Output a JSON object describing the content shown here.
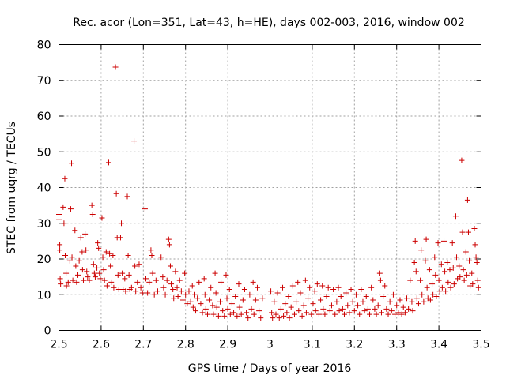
{
  "chart_data": {
    "type": "scatter",
    "title": "Rec. acor (Lon=351, Lat=43, h=HE), days 002-003, 2016, window 002",
    "xlabel": "GPS time / Days of year 2016",
    "ylabel": "STEC from uqrg / TECUs",
    "xlim": [
      2.5,
      3.5
    ],
    "ylim": [
      0,
      80
    ],
    "xticks": [
      2.5,
      2.6,
      2.7,
      2.8,
      2.9,
      3.0,
      3.1,
      3.2,
      3.3,
      3.4,
      3.5
    ],
    "xtick_labels": [
      "2.5",
      "2.6",
      "2.7",
      "2.8",
      "2.9",
      "3",
      "3.1",
      "3.2",
      "3.3",
      "3.4",
      "3.5"
    ],
    "yticks": [
      0,
      10,
      20,
      30,
      40,
      50,
      60,
      70,
      80
    ],
    "ytick_labels": [
      "0",
      "10",
      "20",
      "30",
      "40",
      "50",
      "60",
      "70",
      "80"
    ],
    "grid": true,
    "marker": "+",
    "color": "#cc0000",
    "series": [
      {
        "name": "STEC",
        "points": [
          [
            2.5,
            32.5
          ],
          [
            2.5,
            31.0
          ],
          [
            2.502,
            24.0
          ],
          [
            2.502,
            22.5
          ],
          [
            2.503,
            14.5
          ],
          [
            2.504,
            13.0
          ],
          [
            2.51,
            34.5
          ],
          [
            2.512,
            30.0
          ],
          [
            2.514,
            42.5
          ],
          [
            2.515,
            21.0
          ],
          [
            2.517,
            16.0
          ],
          [
            2.518,
            12.5
          ],
          [
            2.522,
            13.5
          ],
          [
            2.526,
            19.5
          ],
          [
            2.528,
            34.0
          ],
          [
            2.53,
            46.8
          ],
          [
            2.531,
            20.5
          ],
          [
            2.533,
            14.0
          ],
          [
            2.538,
            28.0
          ],
          [
            2.54,
            18.0
          ],
          [
            2.542,
            13.5
          ],
          [
            2.545,
            15.5
          ],
          [
            2.548,
            19.5
          ],
          [
            2.552,
            26.0
          ],
          [
            2.555,
            22.0
          ],
          [
            2.556,
            17.0
          ],
          [
            2.558,
            14.0
          ],
          [
            2.562,
            27.0
          ],
          [
            2.564,
            22.5
          ],
          [
            2.566,
            16.5
          ],
          [
            2.568,
            15.0
          ],
          [
            2.572,
            14.0
          ],
          [
            2.578,
            35.0
          ],
          [
            2.58,
            32.5
          ],
          [
            2.582,
            18.5
          ],
          [
            2.584,
            16.0
          ],
          [
            2.586,
            15.0
          ],
          [
            2.59,
            17.5
          ],
          [
            2.592,
            24.5
          ],
          [
            2.594,
            23.0
          ],
          [
            2.596,
            16.0
          ],
          [
            2.598,
            14.5
          ],
          [
            2.602,
            31.5
          ],
          [
            2.604,
            20.5
          ],
          [
            2.606,
            17.0
          ],
          [
            2.608,
            14.0
          ],
          [
            2.612,
            22.0
          ],
          [
            2.614,
            12.5
          ],
          [
            2.618,
            47.0
          ],
          [
            2.62,
            21.5
          ],
          [
            2.622,
            18.0
          ],
          [
            2.624,
            13.5
          ],
          [
            2.628,
            21.0
          ],
          [
            2.63,
            12.0
          ],
          [
            2.634,
            73.7
          ],
          [
            2.636,
            38.3
          ],
          [
            2.638,
            26.0
          ],
          [
            2.64,
            15.5
          ],
          [
            2.642,
            11.5
          ],
          [
            2.646,
            26.0
          ],
          [
            2.648,
            30.0
          ],
          [
            2.65,
            16.0
          ],
          [
            2.652,
            11.5
          ],
          [
            2.656,
            14.5
          ],
          [
            2.658,
            11.0
          ],
          [
            2.662,
            37.5
          ],
          [
            2.664,
            21.0
          ],
          [
            2.666,
            15.5
          ],
          [
            2.668,
            11.5
          ],
          [
            2.672,
            12.0
          ],
          [
            2.678,
            53.0
          ],
          [
            2.68,
            18.0
          ],
          [
            2.682,
            11.0
          ],
          [
            2.686,
            13.5
          ],
          [
            2.69,
            18.5
          ],
          [
            2.694,
            12.0
          ],
          [
            2.698,
            10.5
          ],
          [
            2.704,
            34.0
          ],
          [
            2.706,
            14.5
          ],
          [
            2.71,
            10.5
          ],
          [
            2.714,
            13.5
          ],
          [
            2.718,
            22.5
          ],
          [
            2.72,
            21.0
          ],
          [
            2.722,
            16.0
          ],
          [
            2.726,
            10.0
          ],
          [
            2.73,
            14.0
          ],
          [
            2.734,
            11.0
          ],
          [
            2.742,
            20.5
          ],
          [
            2.746,
            15.0
          ],
          [
            2.748,
            12.0
          ],
          [
            2.752,
            10.0
          ],
          [
            2.756,
            14.0
          ],
          [
            2.76,
            25.5
          ],
          [
            2.762,
            24.0
          ],
          [
            2.764,
            18.0
          ],
          [
            2.766,
            13.0
          ],
          [
            2.77,
            11.5
          ],
          [
            2.772,
            9.0
          ],
          [
            2.776,
            16.5
          ],
          [
            2.78,
            12.0
          ],
          [
            2.782,
            9.5
          ],
          [
            2.786,
            14.0
          ],
          [
            2.79,
            11.0
          ],
          [
            2.794,
            8.5
          ],
          [
            2.798,
            16.0
          ],
          [
            2.8,
            10.0
          ],
          [
            2.804,
            7.5
          ],
          [
            2.808,
            11.0
          ],
          [
            2.812,
            8.0
          ],
          [
            2.816,
            12.5
          ],
          [
            2.818,
            6.5
          ],
          [
            2.822,
            10.0
          ],
          [
            2.824,
            5.5
          ],
          [
            2.828,
            9.0
          ],
          [
            2.832,
            13.5
          ],
          [
            2.836,
            7.5
          ],
          [
            2.84,
            5.0
          ],
          [
            2.844,
            14.5
          ],
          [
            2.846,
            10.0
          ],
          [
            2.848,
            6.0
          ],
          [
            2.852,
            4.5
          ],
          [
            2.856,
            8.5
          ],
          [
            2.86,
            12.0
          ],
          [
            2.864,
            7.0
          ],
          [
            2.866,
            4.5
          ],
          [
            2.87,
            16.0
          ],
          [
            2.872,
            10.5
          ],
          [
            2.874,
            6.5
          ],
          [
            2.878,
            4.0
          ],
          [
            2.882,
            8.0
          ],
          [
            2.884,
            13.5
          ],
          [
            2.888,
            5.5
          ],
          [
            2.892,
            4.0
          ],
          [
            2.896,
            15.5
          ],
          [
            2.898,
            9.0
          ],
          [
            2.9,
            6.0
          ],
          [
            2.904,
            11.5
          ],
          [
            2.906,
            4.5
          ],
          [
            2.91,
            7.5
          ],
          [
            2.914,
            5.0
          ],
          [
            2.918,
            9.5
          ],
          [
            2.922,
            4.0
          ],
          [
            2.926,
            13.0
          ],
          [
            2.928,
            6.5
          ],
          [
            2.932,
            4.5
          ],
          [
            2.936,
            8.5
          ],
          [
            2.94,
            11.5
          ],
          [
            2.944,
            5.0
          ],
          [
            2.948,
            3.5
          ],
          [
            2.952,
            10.0
          ],
          [
            2.956,
            6.0
          ],
          [
            2.96,
            13.5
          ],
          [
            2.962,
            4.5
          ],
          [
            2.966,
            8.5
          ],
          [
            2.97,
            12.0
          ],
          [
            2.974,
            5.5
          ],
          [
            2.978,
            3.5
          ],
          [
            2.982,
            9.0
          ],
          [
            3.002,
            11.0
          ],
          [
            3.004,
            5.0
          ],
          [
            3.006,
            3.5
          ],
          [
            3.01,
            8.0
          ],
          [
            3.014,
            4.5
          ],
          [
            3.018,
            10.5
          ],
          [
            3.022,
            3.5
          ],
          [
            3.026,
            6.0
          ],
          [
            3.03,
            12.0
          ],
          [
            3.032,
            4.0
          ],
          [
            3.036,
            7.5
          ],
          [
            3.04,
            5.0
          ],
          [
            3.044,
            9.5
          ],
          [
            3.046,
            3.5
          ],
          [
            3.05,
            6.5
          ],
          [
            3.054,
            12.5
          ],
          [
            3.058,
            4.5
          ],
          [
            3.062,
            8.0
          ],
          [
            3.066,
            13.5
          ],
          [
            3.068,
            5.5
          ],
          [
            3.072,
            10.5
          ],
          [
            3.076,
            4.0
          ],
          [
            3.08,
            7.0
          ],
          [
            3.084,
            14.0
          ],
          [
            3.086,
            5.0
          ],
          [
            3.09,
            9.0
          ],
          [
            3.094,
            12.0
          ],
          [
            3.098,
            4.5
          ],
          [
            3.102,
            7.5
          ],
          [
            3.106,
            11.0
          ],
          [
            3.108,
            5.5
          ],
          [
            3.112,
            13.0
          ],
          [
            3.116,
            4.5
          ],
          [
            3.12,
            8.5
          ],
          [
            3.124,
            12.5
          ],
          [
            3.126,
            6.0
          ],
          [
            3.13,
            4.5
          ],
          [
            3.134,
            9.5
          ],
          [
            3.138,
            12.0
          ],
          [
            3.142,
            5.5
          ],
          [
            3.146,
            7.0
          ],
          [
            3.15,
            11.5
          ],
          [
            3.154,
            4.5
          ],
          [
            3.158,
            8.0
          ],
          [
            3.162,
            12.0
          ],
          [
            3.164,
            5.5
          ],
          [
            3.168,
            9.5
          ],
          [
            3.172,
            6.0
          ],
          [
            3.176,
            4.5
          ],
          [
            3.18,
            10.5
          ],
          [
            3.184,
            7.0
          ],
          [
            3.188,
            5.0
          ],
          [
            3.192,
            11.5
          ],
          [
            3.196,
            8.0
          ],
          [
            3.2,
            5.5
          ],
          [
            3.204,
            10.0
          ],
          [
            3.208,
            7.0
          ],
          [
            3.212,
            4.5
          ],
          [
            3.216,
            11.5
          ],
          [
            3.22,
            8.0
          ],
          [
            3.224,
            5.5
          ],
          [
            3.228,
            9.5
          ],
          [
            3.232,
            6.0
          ],
          [
            3.236,
            4.5
          ],
          [
            3.24,
            12.0
          ],
          [
            3.244,
            8.5
          ],
          [
            3.248,
            6.0
          ],
          [
            3.252,
            4.5
          ],
          [
            3.256,
            7.0
          ],
          [
            3.26,
            16.0
          ],
          [
            3.262,
            14.0
          ],
          [
            3.264,
            5.0
          ],
          [
            3.268,
            9.5
          ],
          [
            3.272,
            12.5
          ],
          [
            3.276,
            6.0
          ],
          [
            3.28,
            4.5
          ],
          [
            3.284,
            8.0
          ],
          [
            3.288,
            5.5
          ],
          [
            3.292,
            10.0
          ],
          [
            3.296,
            4.5
          ],
          [
            3.3,
            7.0
          ],
          [
            3.304,
            5.0
          ],
          [
            3.308,
            8.5
          ],
          [
            3.312,
            4.5
          ],
          [
            3.316,
            6.5
          ],
          [
            3.32,
            5.0
          ],
          [
            3.324,
            9.0
          ],
          [
            3.328,
            6.0
          ],
          [
            3.332,
            14.0
          ],
          [
            3.336,
            8.0
          ],
          [
            3.338,
            5.5
          ],
          [
            3.342,
            19.0
          ],
          [
            3.344,
            25.0
          ],
          [
            3.346,
            16.5
          ],
          [
            3.348,
            9.0
          ],
          [
            3.352,
            7.5
          ],
          [
            3.356,
            14.0
          ],
          [
            3.358,
            22.5
          ],
          [
            3.36,
            10.0
          ],
          [
            3.364,
            8.0
          ],
          [
            3.368,
            19.5
          ],
          [
            3.37,
            25.5
          ],
          [
            3.372,
            12.0
          ],
          [
            3.374,
            9.0
          ],
          [
            3.378,
            17.0
          ],
          [
            3.38,
            8.5
          ],
          [
            3.384,
            13.0
          ],
          [
            3.386,
            10.0
          ],
          [
            3.39,
            20.5
          ],
          [
            3.392,
            15.5
          ],
          [
            3.394,
            9.5
          ],
          [
            3.398,
            24.5
          ],
          [
            3.4,
            14.0
          ],
          [
            3.402,
            11.0
          ],
          [
            3.406,
            18.5
          ],
          [
            3.408,
            12.0
          ],
          [
            3.412,
            25.0
          ],
          [
            3.414,
            16.5
          ],
          [
            3.416,
            11.0
          ],
          [
            3.42,
            19.0
          ],
          [
            3.422,
            13.5
          ],
          [
            3.426,
            17.0
          ],
          [
            3.428,
            12.0
          ],
          [
            3.432,
            24.5
          ],
          [
            3.434,
            17.5
          ],
          [
            3.436,
            13.0
          ],
          [
            3.44,
            32.0
          ],
          [
            3.442,
            20.5
          ],
          [
            3.444,
            14.5
          ],
          [
            3.448,
            18.0
          ],
          [
            3.45,
            15.0
          ],
          [
            3.454,
            47.6
          ],
          [
            3.456,
            27.5
          ],
          [
            3.458,
            17.0
          ],
          [
            3.46,
            14.0
          ],
          [
            3.464,
            22.0
          ],
          [
            3.466,
            15.5
          ],
          [
            3.468,
            36.5
          ],
          [
            3.47,
            27.5
          ],
          [
            3.472,
            19.5
          ],
          [
            3.474,
            12.5
          ],
          [
            3.478,
            16.0
          ],
          [
            3.48,
            13.0
          ],
          [
            3.484,
            28.5
          ],
          [
            3.486,
            24.0
          ],
          [
            3.488,
            20.5
          ],
          [
            3.49,
            19.0
          ],
          [
            3.492,
            14.0
          ],
          [
            3.494,
            12.0
          ]
        ]
      }
    ]
  }
}
